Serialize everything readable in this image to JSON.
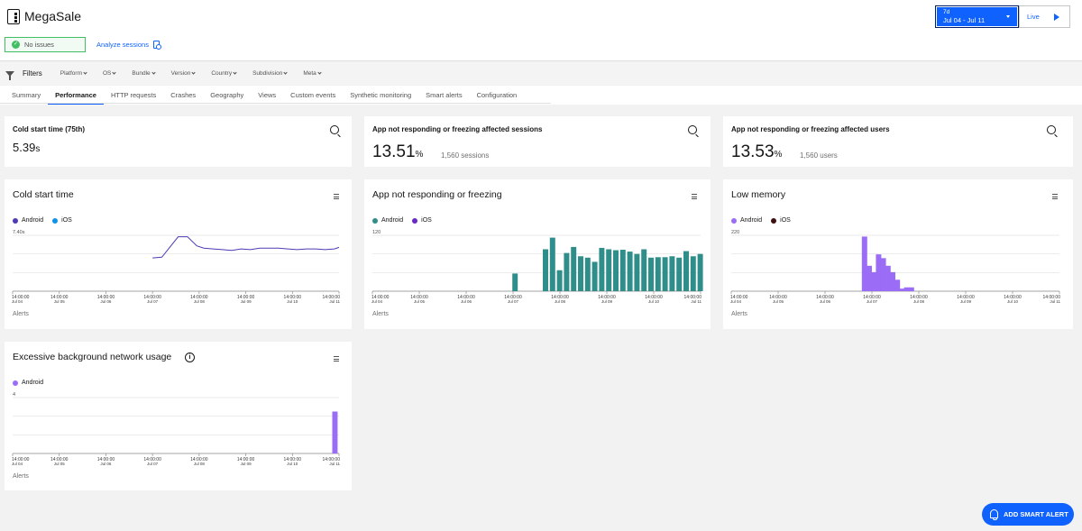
{
  "app": {
    "title": "MegaSale"
  },
  "status": {
    "issues_label": "No issues",
    "analyze_label": "Analyze sessions"
  },
  "date_range": {
    "preset": "7d",
    "range": "Jul 04 - Jul 11",
    "live_label": "Live"
  },
  "filters": {
    "label": "Filters",
    "items": [
      "Platform",
      "OS",
      "Bundle",
      "Version",
      "Country",
      "Subdivision",
      "Meta"
    ]
  },
  "tabs": [
    "Summary",
    "Performance",
    "HTTP requests",
    "Crashes",
    "Geography",
    "Views",
    "Custom events",
    "Synthetic monitoring",
    "Smart alerts",
    "Configuration"
  ],
  "active_tab": "Performance",
  "kpis": [
    {
      "title": "Cold start time (75th)",
      "value": "5.39",
      "unit": "s",
      "sub": ""
    },
    {
      "title": "App not responding or freezing affected sessions",
      "value": "13.51",
      "unit": "%",
      "sub": "1,560 sessions"
    },
    {
      "title": "App not responding or freezing affected users",
      "value": "13.53",
      "unit": "%",
      "sub": "1,560 users"
    }
  ],
  "x_ticks": [
    {
      "time": "14:00:00",
      "date": "Jul 04"
    },
    {
      "time": "14:00:00",
      "date": "Jul 05"
    },
    {
      "time": "14:00:00",
      "date": "Jul 06"
    },
    {
      "time": "14:00:00",
      "date": "Jul 07"
    },
    {
      "time": "14:00:00",
      "date": "Jul 08"
    },
    {
      "time": "14:00:00",
      "date": "Jul 09"
    },
    {
      "time": "14:00:00",
      "date": "Jul 10"
    },
    {
      "time": "14:00:00",
      "date": "Jul 11"
    }
  ],
  "alerts_label": "Alerts",
  "colors": {
    "android_line": "#4c3bb3",
    "ios_blue": "#1192e8",
    "teal": "#2f8e8a",
    "ios_purple": "#6929c4",
    "memory": "#9b6cf5",
    "memory_ios": "#3d1010",
    "network": "#9b6cf5"
  },
  "fab_label": "ADD SMART ALERT",
  "chart_data": [
    {
      "type": "line",
      "title": "Cold start time",
      "ymax_label": "7.40s",
      "ylim": [
        0,
        7.4
      ],
      "series": [
        {
          "name": "Android",
          "color": "#4c3bb3",
          "x": [
            3.0,
            3.2,
            3.55,
            3.75,
            3.95,
            4.1,
            4.3,
            4.5,
            4.7,
            4.9,
            5.1,
            5.3,
            5.5,
            5.7,
            5.9,
            6.1,
            6.3,
            6.5,
            6.7,
            6.9,
            7.0
          ],
          "values": [
            4.4,
            4.5,
            7.2,
            7.2,
            6.0,
            5.7,
            5.6,
            5.5,
            5.4,
            5.6,
            5.5,
            5.7,
            5.7,
            5.7,
            5.6,
            5.5,
            5.6,
            5.6,
            5.5,
            5.6,
            5.8
          ]
        },
        {
          "name": "iOS",
          "color": "#1192e8",
          "x": [],
          "values": []
        }
      ]
    },
    {
      "type": "bar",
      "title": "App not responding or freezing",
      "ymax_label": "120",
      "ylim": [
        0,
        120
      ],
      "series": [
        {
          "name": "Android",
          "color": "#2f8e8a",
          "x": [
            3.05,
            3.7,
            3.85,
            4.0,
            4.15,
            4.3,
            4.45,
            4.6,
            4.75,
            4.9,
            5.05,
            5.2,
            5.35,
            5.5,
            5.65,
            5.8,
            5.95,
            6.1,
            6.25,
            6.4,
            6.55,
            6.7,
            6.85,
            7.0
          ],
          "values": [
            38,
            90,
            115,
            45,
            82,
            95,
            75,
            72,
            63,
            93,
            90,
            88,
            89,
            85,
            80,
            90,
            72,
            73,
            73,
            75,
            72,
            86,
            75,
            80
          ]
        },
        {
          "name": "iOS",
          "color": "#6929c4",
          "x": [],
          "values": []
        }
      ]
    },
    {
      "type": "bar",
      "title": "Low memory",
      "ymax_label": "220",
      "ylim": [
        0,
        220
      ],
      "series": [
        {
          "name": "Android",
          "color": "#9b6cf5",
          "x": [
            2.85,
            2.95,
            3.05,
            3.15,
            3.25,
            3.35,
            3.45,
            3.55,
            3.65,
            3.75,
            3.85
          ],
          "values": [
            215,
            100,
            75,
            145,
            130,
            100,
            75,
            45,
            10,
            15,
            15
          ]
        },
        {
          "name": "iOS",
          "color": "#3d1010",
          "x": [],
          "values": []
        }
      ]
    },
    {
      "type": "bar",
      "title": "Excessive background network usage",
      "ymax_label": "4",
      "ylim": [
        0,
        4
      ],
      "series": [
        {
          "name": "Android",
          "color": "#9b6cf5",
          "x": [
            6.92
          ],
          "values": [
            3
          ]
        }
      ]
    }
  ]
}
